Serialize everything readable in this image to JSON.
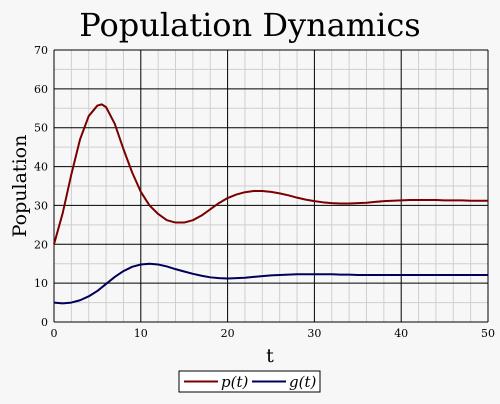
{
  "chart_data": {
    "type": "line",
    "title": "Population Dynamics",
    "xlabel": "t",
    "ylabel": "Population",
    "xlim": [
      0,
      50
    ],
    "ylim": [
      0,
      70
    ],
    "x_ticks": [
      0,
      10,
      20,
      30,
      40,
      50
    ],
    "y_ticks": [
      0,
      10,
      20,
      30,
      40,
      50,
      60,
      70
    ],
    "grid": true,
    "legend_position": "bottom-center",
    "series": [
      {
        "name": "p(t)",
        "color": "#7a0000",
        "x": [
          0,
          1,
          2,
          3,
          4,
          5,
          5.5,
          6,
          7,
          8,
          9,
          10,
          11,
          12,
          13,
          14,
          15,
          16,
          17,
          18,
          19,
          20,
          21,
          22,
          23,
          24,
          25,
          26,
          27,
          28,
          29,
          30,
          31,
          32,
          33,
          34,
          35,
          36,
          37,
          38,
          39,
          40,
          41,
          42,
          43,
          44,
          45,
          46,
          47,
          48,
          49,
          50
        ],
        "y": [
          20,
          28,
          38,
          47,
          53,
          55.7,
          56,
          55.3,
          51,
          44.5,
          38.5,
          33.5,
          30,
          27.8,
          26.2,
          25.6,
          25.6,
          26.2,
          27.4,
          29,
          30.6,
          31.9,
          32.8,
          33.4,
          33.7,
          33.7,
          33.5,
          33.1,
          32.6,
          32,
          31.5,
          31.1,
          30.8,
          30.6,
          30.5,
          30.5,
          30.6,
          30.7,
          30.9,
          31.1,
          31.2,
          31.3,
          31.4,
          31.4,
          31.4,
          31.4,
          31.3,
          31.3,
          31.3,
          31.2,
          31.2,
          31.2
        ]
      },
      {
        "name": "g(t)",
        "color": "#00005a",
        "x": [
          0,
          1,
          2,
          3,
          4,
          5,
          6,
          7,
          8,
          9,
          10,
          11,
          12,
          13,
          14,
          15,
          16,
          17,
          18,
          19,
          20,
          21,
          22,
          23,
          24,
          25,
          26,
          27,
          28,
          29,
          30,
          31,
          32,
          33,
          34,
          35,
          36,
          37,
          38,
          39,
          40,
          41,
          42,
          43,
          44,
          45,
          46,
          47,
          48,
          49,
          50
        ],
        "y": [
          5,
          4.8,
          5,
          5.6,
          6.6,
          8,
          9.8,
          11.6,
          13.1,
          14.2,
          14.8,
          15,
          14.8,
          14.3,
          13.6,
          13,
          12.4,
          11.9,
          11.5,
          11.3,
          11.2,
          11.3,
          11.4,
          11.6,
          11.8,
          12,
          12.1,
          12.2,
          12.3,
          12.3,
          12.3,
          12.3,
          12.3,
          12.2,
          12.2,
          12.1,
          12.1,
          12.1,
          12.1,
          12.1,
          12.1,
          12.1,
          12.1,
          12.1,
          12.1,
          12.1,
          12.1,
          12.1,
          12.1,
          12.1,
          12.1
        ]
      }
    ]
  }
}
